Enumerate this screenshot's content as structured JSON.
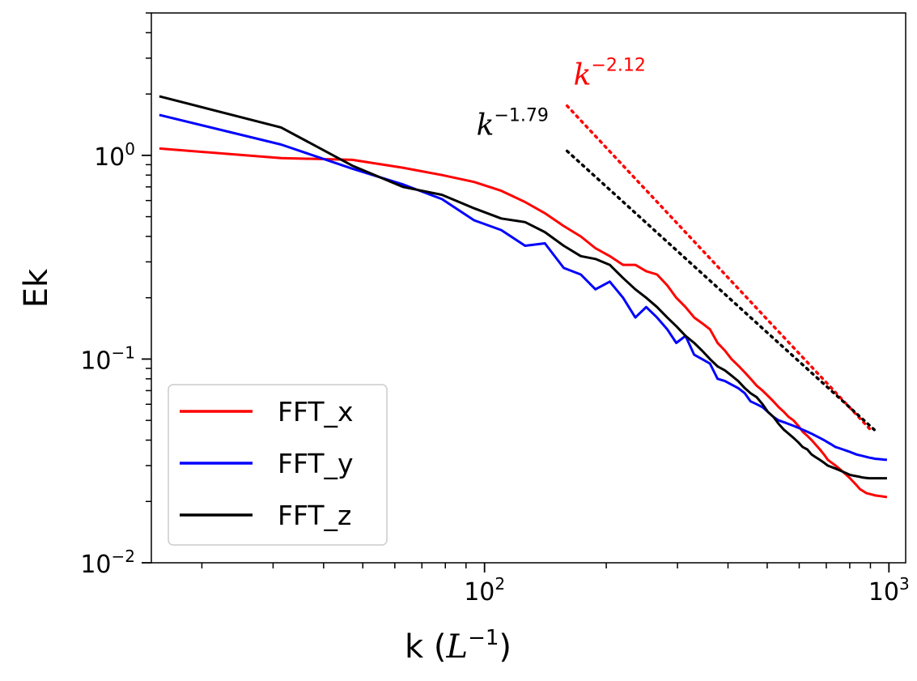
{
  "chart_data": {
    "type": "line",
    "scale": {
      "x": "log",
      "y": "log"
    },
    "xlabel": "k",
    "xlabel_unit": "L",
    "xlabel_unit_exp": "−1",
    "ylabel": "Ek",
    "xlim": [
      15,
      1100
    ],
    "ylim": [
      0.01,
      5
    ],
    "x_ticks": [
      {
        "base": "10",
        "exp": "2",
        "value": 100
      },
      {
        "base": "10",
        "exp": "3",
        "value": 1000
      }
    ],
    "y_ticks": [
      {
        "base": "10",
        "exp": "0",
        "value": 1
      },
      {
        "base": "10",
        "exp": "−1",
        "value": 0.1
      },
      {
        "base": "10",
        "exp": "−2",
        "value": 0.01
      }
    ],
    "legend_position": "lower-left",
    "series": [
      {
        "name": "FFT_x",
        "color": "#ff0000",
        "x": [
          15.7,
          31.4,
          47.1,
          62.8,
          78.5,
          94.2,
          110,
          126,
          141,
          157,
          173,
          188,
          204,
          220,
          236,
          251,
          267,
          283,
          298,
          314,
          330,
          345,
          361,
          377,
          393,
          408,
          424,
          440,
          455,
          471,
          487,
          502,
          518,
          534,
          550,
          565,
          581,
          597,
          612,
          628,
          644,
          659,
          675,
          691,
          706,
          722,
          738,
          754,
          769,
          785,
          801,
          816,
          832,
          848,
          863,
          879,
          895,
          911,
          926,
          942,
          958,
          973,
          989
        ],
        "y": [
          1.08,
          0.97,
          0.95,
          0.87,
          0.8,
          0.74,
          0.67,
          0.59,
          0.52,
          0.45,
          0.4,
          0.35,
          0.32,
          0.29,
          0.29,
          0.27,
          0.26,
          0.23,
          0.2,
          0.18,
          0.16,
          0.15,
          0.14,
          0.12,
          0.11,
          0.1,
          0.093,
          0.086,
          0.08,
          0.074,
          0.07,
          0.066,
          0.062,
          0.058,
          0.055,
          0.052,
          0.05,
          0.047,
          0.044,
          0.042,
          0.04,
          0.038,
          0.036,
          0.034,
          0.032,
          0.031,
          0.03,
          0.029,
          0.028,
          0.027,
          0.026,
          0.025,
          0.024,
          0.023,
          0.0225,
          0.022,
          0.0218,
          0.0216,
          0.0214,
          0.0213,
          0.0212,
          0.0211,
          0.021
        ]
      },
      {
        "name": "FFT_y",
        "color": "#0000ff",
        "x": [
          15.7,
          31.4,
          47.1,
          62.8,
          78.5,
          94.2,
          110,
          126,
          141,
          157,
          173,
          188,
          204,
          220,
          236,
          251,
          267,
          283,
          298,
          314,
          330,
          345,
          361,
          377,
          393,
          408,
          424,
          440,
          455,
          471,
          487,
          502,
          518,
          534,
          550,
          565,
          581,
          597,
          612,
          628,
          644,
          659,
          675,
          691,
          706,
          722,
          738,
          754,
          769,
          785,
          801,
          816,
          832,
          848,
          863,
          879,
          895,
          911,
          926,
          942,
          958,
          973,
          989
        ],
        "y": [
          1.58,
          1.13,
          0.86,
          0.72,
          0.61,
          0.48,
          0.43,
          0.36,
          0.37,
          0.28,
          0.26,
          0.22,
          0.24,
          0.2,
          0.16,
          0.18,
          0.16,
          0.14,
          0.12,
          0.13,
          0.105,
          0.1,
          0.095,
          0.08,
          0.078,
          0.075,
          0.072,
          0.068,
          0.062,
          0.06,
          0.058,
          0.055,
          0.052,
          0.05,
          0.049,
          0.048,
          0.047,
          0.046,
          0.045,
          0.044,
          0.043,
          0.042,
          0.041,
          0.04,
          0.039,
          0.038,
          0.037,
          0.0365,
          0.036,
          0.0355,
          0.035,
          0.0345,
          0.034,
          0.0337,
          0.0334,
          0.0331,
          0.0328,
          0.0326,
          0.0324,
          0.0323,
          0.0322,
          0.0321,
          0.032
        ]
      },
      {
        "name": "FFT_z",
        "color": "#000000",
        "x": [
          15.7,
          31.4,
          47.1,
          62.8,
          78.5,
          94.2,
          110,
          126,
          141,
          157,
          173,
          188,
          204,
          220,
          236,
          251,
          267,
          283,
          298,
          314,
          330,
          345,
          361,
          377,
          393,
          408,
          424,
          440,
          455,
          471,
          487,
          502,
          518,
          534,
          550,
          565,
          581,
          597,
          612,
          628,
          644,
          659,
          675,
          691,
          706,
          722,
          738,
          754,
          769,
          785,
          801,
          816,
          832,
          848,
          863,
          879,
          895,
          911,
          926,
          942,
          958,
          973,
          989
        ],
        "y": [
          1.95,
          1.37,
          0.89,
          0.7,
          0.64,
          0.55,
          0.49,
          0.47,
          0.42,
          0.36,
          0.32,
          0.31,
          0.29,
          0.25,
          0.22,
          0.2,
          0.18,
          0.16,
          0.145,
          0.13,
          0.12,
          0.11,
          0.1,
          0.092,
          0.088,
          0.083,
          0.078,
          0.072,
          0.068,
          0.065,
          0.06,
          0.055,
          0.052,
          0.048,
          0.045,
          0.043,
          0.041,
          0.039,
          0.037,
          0.036,
          0.034,
          0.033,
          0.032,
          0.031,
          0.03,
          0.0295,
          0.029,
          0.0285,
          0.028,
          0.0275,
          0.027,
          0.0268,
          0.0266,
          0.0264,
          0.0262,
          0.0261,
          0.026,
          0.026,
          0.026,
          0.026,
          0.026,
          0.026,
          0.026
        ]
      }
    ],
    "reference_lines": [
      {
        "name": "k^-2.12",
        "base": "k",
        "exp": "−2.12",
        "color": "#ff0000",
        "style": "dotted",
        "x": [
          160,
          910
        ],
        "y": [
          1.75,
          0.044
        ]
      },
      {
        "name": "k^-1.79",
        "base": "k",
        "exp": "−1.79",
        "color": "#000000",
        "style": "dotted",
        "x": [
          160,
          920
        ],
        "y": [
          1.05,
          0.045
        ]
      }
    ]
  }
}
